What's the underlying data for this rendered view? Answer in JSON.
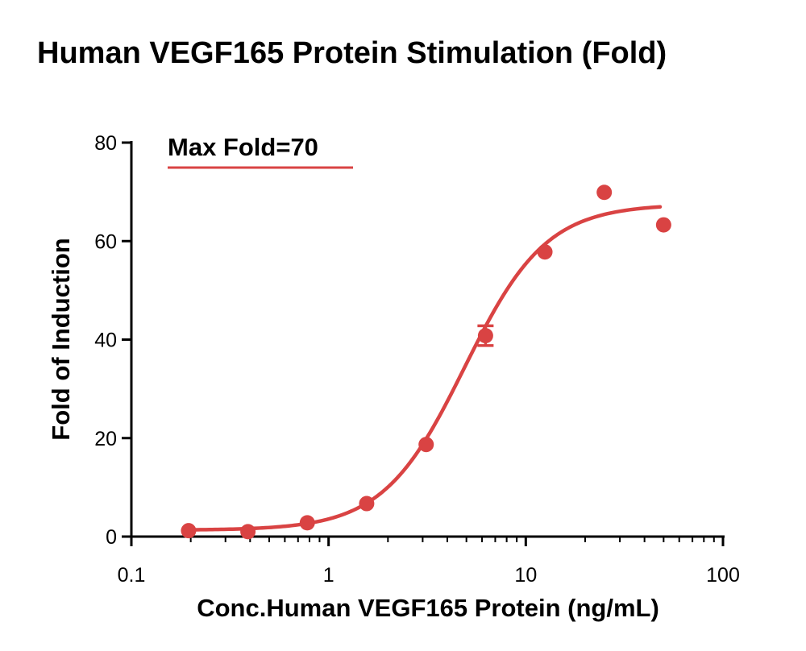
{
  "chart_data": {
    "type": "scatter",
    "title": "Human VEGF165 Protein Stimulation (Fold)",
    "xlabel": "Conc.Human VEGF165 Protein (ng/mL)",
    "ylabel": "Fold of Induction",
    "x_scale": "log",
    "xlim": [
      0.1,
      100
    ],
    "ylim": [
      0,
      80
    ],
    "x_ticks": [
      0.1,
      1,
      10,
      100
    ],
    "x_tick_labels": [
      "0.1",
      "1",
      "10",
      "100"
    ],
    "y_ticks": [
      0,
      20,
      40,
      60,
      80
    ],
    "y_tick_labels": [
      "0",
      "20",
      "40",
      "60",
      "80"
    ],
    "grid": false,
    "legend_position": "top-left",
    "legend_label": "Max Fold=70",
    "color": "#d94343",
    "series": [
      {
        "x": [
          0.195,
          0.39,
          0.78,
          1.56,
          3.125,
          6.25,
          12.5,
          25,
          50
        ],
        "y": [
          1.2,
          1.0,
          2.8,
          6.7,
          18.7,
          40.8,
          57.8,
          69.9,
          63.3
        ],
        "error": [
          0,
          0,
          0,
          0,
          0,
          2.0,
          0,
          0,
          0
        ]
      }
    ],
    "fit": {
      "type": "4PL",
      "bottom": 1.3,
      "top": 67.5,
      "ec50": 4.9,
      "hill": 2.1,
      "x_range": [
        0.195,
        48
      ]
    }
  }
}
